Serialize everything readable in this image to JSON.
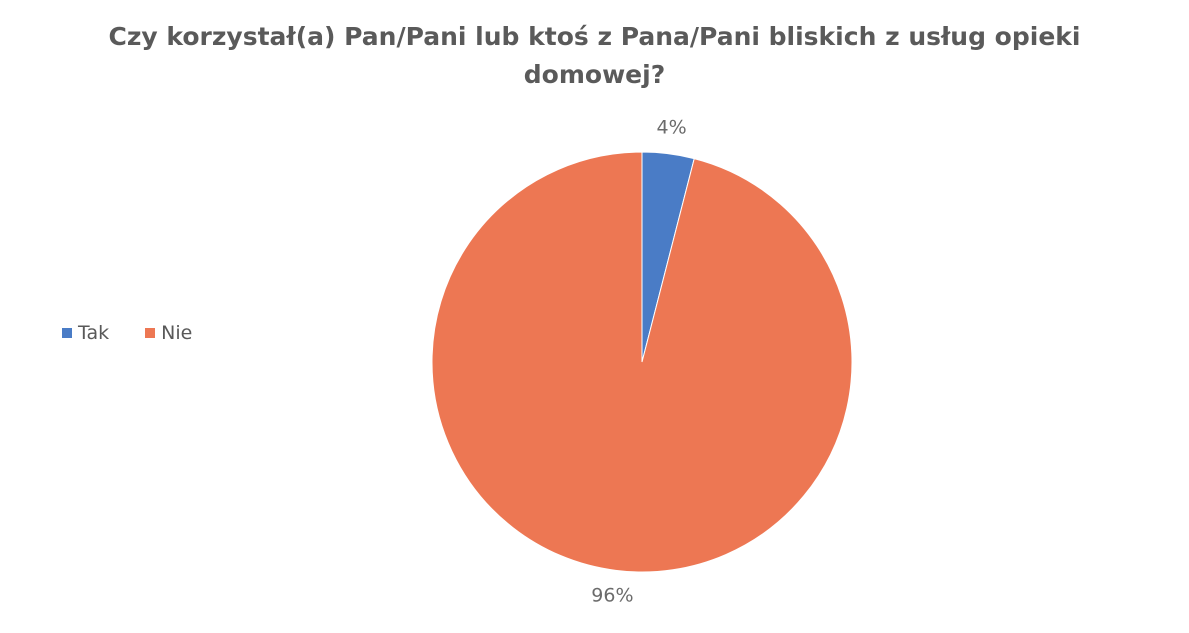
{
  "chart_data": {
    "type": "pie",
    "title_lines": [
      "Czy korzystał(a) Pan/Pani lub ktoś z Pana/Pani bliskich z usług opieki",
      "domowej?"
    ],
    "categories": [
      "Tak",
      "Nie"
    ],
    "values": [
      4,
      96
    ],
    "value_labels": [
      "4%",
      "96%"
    ],
    "colors": [
      "#4a7cc6",
      "#ed7753"
    ],
    "legend_position": "left"
  }
}
